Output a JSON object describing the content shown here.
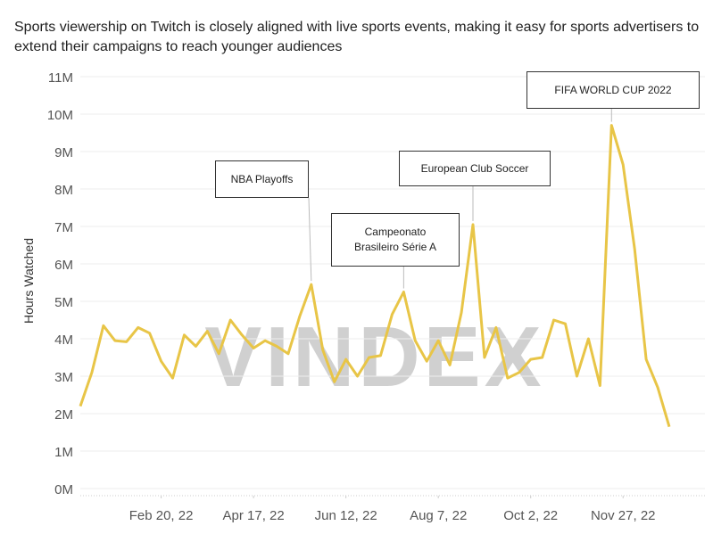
{
  "chart_data": {
    "type": "line",
    "title": "Sports viewership on Twitch  is closely aligned with live sports events, making it easy for sports advertisers to extend their campaigns to reach younger audiences",
    "y_label": "Hours Watched",
    "watermark": "VINDEX",
    "x": [
      "2022-01-02",
      "2022-01-09",
      "2022-01-16",
      "2022-01-23",
      "2022-01-30",
      "2022-02-06",
      "2022-02-13",
      "2022-02-20",
      "2022-02-27",
      "2022-03-06",
      "2022-03-13",
      "2022-03-20",
      "2022-03-27",
      "2022-04-03",
      "2022-04-10",
      "2022-04-17",
      "2022-04-24",
      "2022-05-01",
      "2022-05-08",
      "2022-05-15",
      "2022-05-22",
      "2022-05-29",
      "2022-06-05",
      "2022-06-12",
      "2022-06-19",
      "2022-06-26",
      "2022-07-03",
      "2022-07-10",
      "2022-07-17",
      "2022-07-24",
      "2022-07-31",
      "2022-08-07",
      "2022-08-14",
      "2022-08-21",
      "2022-08-28",
      "2022-09-04",
      "2022-09-11",
      "2022-09-18",
      "2022-09-25",
      "2022-10-02",
      "2022-10-09",
      "2022-10-16",
      "2022-10-23",
      "2022-10-30",
      "2022-11-06",
      "2022-11-13",
      "2022-11-20",
      "2022-11-27",
      "2022-12-04",
      "2022-12-11",
      "2022-12-18",
      "2022-12-25"
    ],
    "series": [
      {
        "name": "Hours Watched",
        "color": "#e8c547",
        "values": [
          2.2,
          3.1,
          4.35,
          3.95,
          3.92,
          4.3,
          4.15,
          3.4,
          2.95,
          4.1,
          3.8,
          4.2,
          3.6,
          4.5,
          4.1,
          3.75,
          3.95,
          3.8,
          3.6,
          4.6,
          5.45,
          3.7,
          2.85,
          3.45,
          3.0,
          3.5,
          3.55,
          4.65,
          5.25,
          3.95,
          3.4,
          3.95,
          3.3,
          4.7,
          7.05,
          3.5,
          4.3,
          2.95,
          3.1,
          3.45,
          3.5,
          4.5,
          4.4,
          3.0,
          4.0,
          2.75,
          9.7,
          8.65,
          6.4,
          3.45,
          2.7,
          1.65
        ]
      }
    ],
    "xlim": [
      "2022-01-02",
      "2022-12-25"
    ],
    "xticks": [
      {
        "value": "2022-02-20",
        "label": "Feb 20, 22"
      },
      {
        "value": "2022-04-17",
        "label": "Apr 17, 22"
      },
      {
        "value": "2022-06-12",
        "label": "Jun 12, 22"
      },
      {
        "value": "2022-08-07",
        "label": "Aug 7, 22"
      },
      {
        "value": "2022-10-02",
        "label": "Oct 2, 22"
      },
      {
        "value": "2022-11-27",
        "label": "Nov 27, 22"
      }
    ],
    "ylim": [
      0,
      11
    ],
    "yticks": [
      {
        "value": 0,
        "label": "0M"
      },
      {
        "value": 1,
        "label": "1M"
      },
      {
        "value": 2,
        "label": "2M"
      },
      {
        "value": 3,
        "label": "3M"
      },
      {
        "value": 4,
        "label": "4M"
      },
      {
        "value": 5,
        "label": "5M"
      },
      {
        "value": 6,
        "label": "6M"
      },
      {
        "value": 7,
        "label": "7M"
      },
      {
        "value": 8,
        "label": "8M"
      },
      {
        "value": 9,
        "label": "9M"
      },
      {
        "value": 10,
        "label": "10M"
      },
      {
        "value": 11,
        "label": "11M"
      }
    ],
    "grid": true,
    "annotations": [
      {
        "text": "NBA Playoffs",
        "x": "2022-05-22"
      },
      {
        "text": "Campeonato Brasileiro Série A",
        "x": "2022-07-17"
      },
      {
        "text": "European Club Soccer",
        "x": "2022-08-28"
      },
      {
        "text": "FIFA WORLD CUP 2022",
        "x": "2022-11-20"
      }
    ]
  }
}
